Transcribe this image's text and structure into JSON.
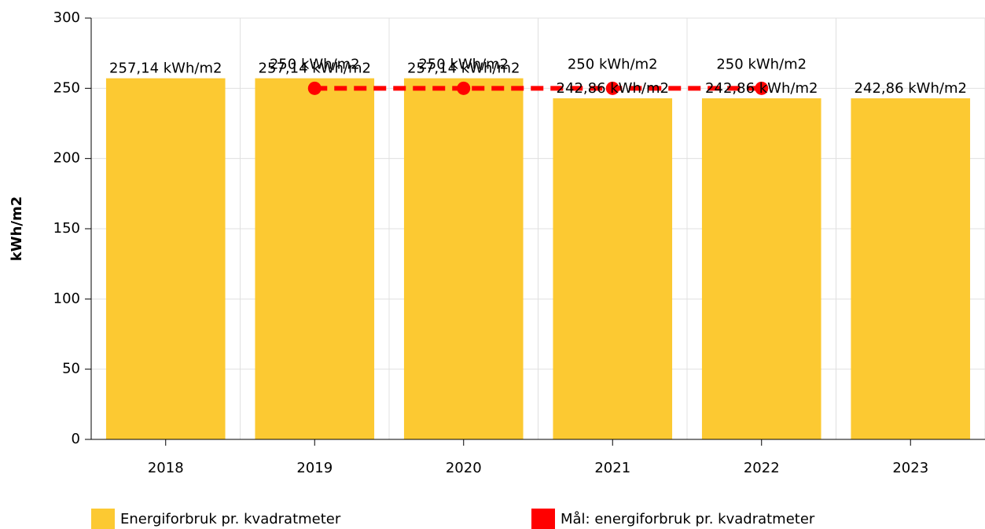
{
  "chart_data": {
    "type": "bar",
    "y_label": "kWh/m2",
    "categories": [
      "2018",
      "2019",
      "2020",
      "2021",
      "2022",
      "2023"
    ],
    "series": [
      {
        "name": "Energiforbruk pr. kvadratmeter",
        "type": "bar",
        "color": "#fcc932",
        "values": [
          257.14,
          257.14,
          257.14,
          242.86,
          242.86,
          242.86
        ],
        "value_labels": [
          "257,14 kWh/m2",
          "257,14 kWh/m2",
          "257,14 kWh/m2",
          "242,86 kWh/m2",
          "242,86 kWh/m2",
          "242,86 kWh/m2"
        ]
      },
      {
        "name": "Mål: energiforbruk pr. kvadratmeter",
        "type": "line",
        "color": "#ff0000",
        "values": [
          null,
          250,
          250,
          250,
          250,
          null
        ],
        "value_labels": [
          null,
          "250 kWh/m2",
          "250 kWh/m2",
          "250 kWh/m2",
          "250 kWh/m2",
          null
        ]
      }
    ],
    "ylim": [
      0,
      300
    ],
    "yticks": [
      0,
      50,
      100,
      150,
      200,
      250,
      300
    ],
    "grid": true
  }
}
